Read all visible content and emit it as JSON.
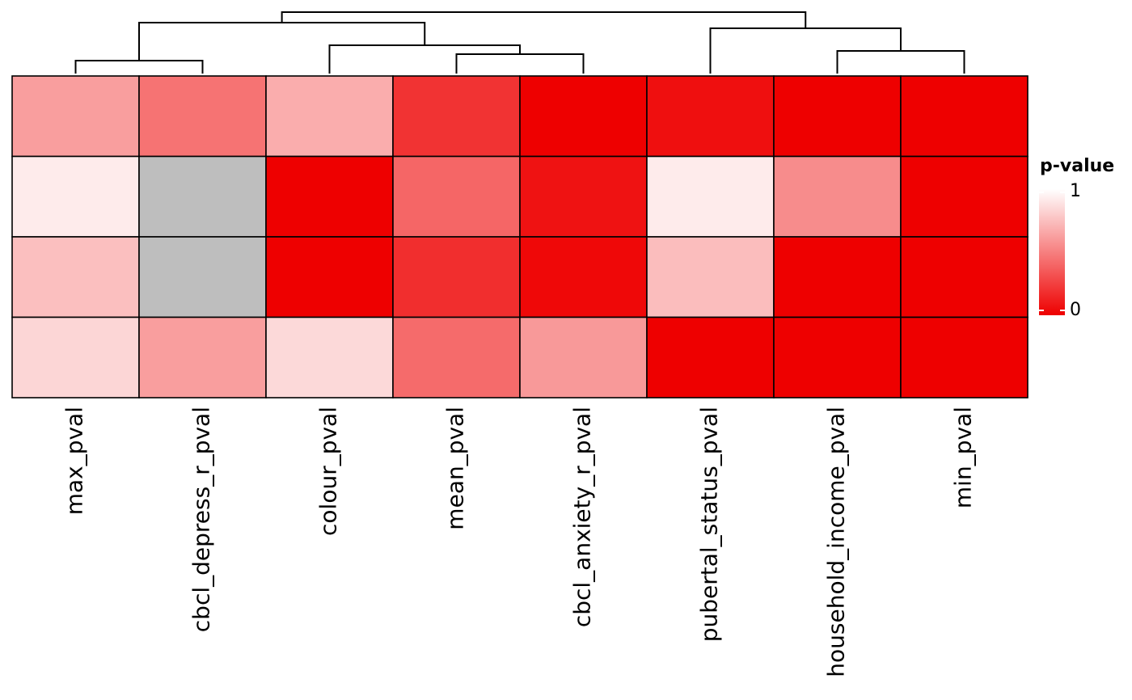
{
  "chart_data": {
    "type": "heatmap",
    "columns": [
      "max_pval",
      "cbcl_depress_r_pval",
      "colour_pval",
      "mean_pval",
      "cbcl_anxiety_r_pval",
      "pubertal_status_pval",
      "household_income_pval",
      "min_pval"
    ],
    "rows": 4,
    "values": [
      [
        0.62,
        0.45,
        0.68,
        0.2,
        0.0,
        0.06,
        0.0,
        0.0
      ],
      [
        0.92,
        null,
        0.0,
        0.4,
        0.07,
        0.92,
        0.55,
        0.0
      ],
      [
        0.75,
        null,
        0.0,
        0.18,
        0.03,
        0.74,
        0.0,
        0.0
      ],
      [
        0.84,
        0.62,
        0.85,
        0.42,
        0.6,
        0.0,
        0.0,
        0.0
      ]
    ],
    "na_color": "#BEBEBE",
    "color_scale": {
      "low": "#EE0000",
      "high": "#FFFFFF",
      "min": 0,
      "max": 1
    },
    "legend": {
      "title": "p-value",
      "ticks": [
        "1",
        "0"
      ],
      "placement": "right"
    },
    "column_dendrogram": true
  }
}
